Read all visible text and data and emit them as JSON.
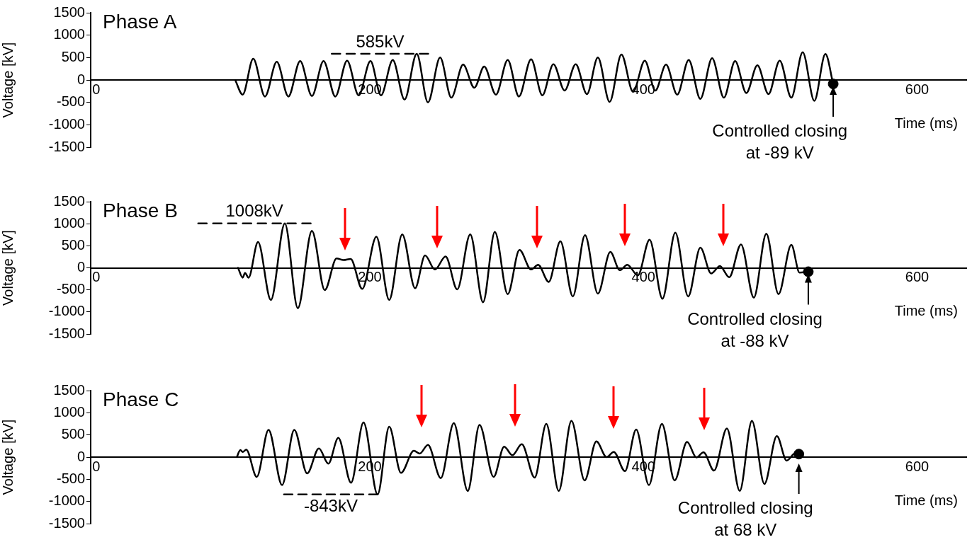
{
  "chart_data": [
    {
      "type": "line",
      "title": "Phase A",
      "xlabel": "Time (ms)",
      "ylabel": "Voltage [kV]",
      "xlim": [
        -4,
        636
      ],
      "ylim": [
        -1500,
        1500
      ],
      "xticks": [
        0,
        200,
        400,
        600
      ],
      "yticks": [
        -1500,
        -1000,
        -500,
        0,
        500,
        1000,
        1500
      ],
      "annotations": [
        {
          "text": "585kV",
          "x": 207.5,
          "y": 585
        },
        {
          "text": "Controlled closing\nat -89 kV",
          "x": 538.7,
          "y": -89
        }
      ],
      "series": [
        {
          "color": "#000000",
          "x": [
            101.6,
            107.1,
            114.8,
            123.4,
            132,
            140.5,
            149.1,
            157.7,
            166.2,
            174.8,
            183.4,
            191.9,
            200.5,
            208.2,
            216.8,
            225.4,
            234.3,
            242.5,
            251.4,
            259.6,
            268.2,
            276.4,
            283.6,
            292.2,
            300.8,
            309,
            317.9,
            326.1,
            334.2,
            342.4,
            350.5,
            358.7,
            366.7,
            375.3,
            383.9,
            392.4,
            401,
            408.7,
            416.5,
            424.7,
            433.1,
            441.6,
            450.2,
            458.8,
            467,
            475.2,
            483.3,
            491.4,
            499.6,
            508.1,
            516.4,
            524.9,
            533,
            538.7
          ],
          "values": [
            0,
            -327,
            474,
            -370,
            405,
            -370,
            421,
            -358,
            421,
            -370,
            432,
            -343,
            421,
            -343,
            447,
            -438,
            585,
            -501,
            500,
            -395,
            342,
            -174,
            300,
            -327,
            447,
            -370,
            463,
            -343,
            352,
            -237,
            352,
            -316,
            500,
            -490,
            569,
            -264,
            432,
            -237,
            342,
            -327,
            447,
            -422,
            484,
            -395,
            421,
            -291,
            326,
            -316,
            432,
            -395,
            620,
            -465,
            579,
            -89
          ]
        },
        {
          "type": "scatter",
          "color": "#000000",
          "x": [
            538.7
          ],
          "values": [
            -89
          ]
        },
        {
          "type": "line",
          "line_style": "dashed",
          "color": "#000000",
          "x": [
            172.2,
            242.7
          ],
          "values": [
            585,
            585
          ]
        }
      ]
    },
    {
      "type": "line",
      "title": "Phase B",
      "xlabel": "Time (ms)",
      "ylabel": "Voltage [kV]",
      "xlim": [
        -4,
        636
      ],
      "ylim": [
        -1500,
        1500
      ],
      "xticks": [
        0,
        200,
        400,
        600
      ],
      "yticks": [
        -1500,
        -1000,
        -500,
        0,
        500,
        1000,
        1500
      ],
      "annotations": [
        {
          "text": "1008kV",
          "x": 115.7,
          "y": 1008
        },
        {
          "text": "Controlled closing\nat -88 kV",
          "x": 520.5,
          "y": -88
        }
      ],
      "series": [
        {
          "color": "#000000",
          "x": [
            103.7,
            107.1,
            108.8,
            111.4,
            118.3,
            127.7,
            137.9,
            147.4,
            157.7,
            167.1,
            175.7,
            180.8,
            186,
            194.5,
            204.8,
            214.2,
            223.7,
            233.1,
            240.4,
            247.6,
            255.4,
            263.9,
            273.4,
            282.8,
            291.4,
            300.8,
            309.4,
            317.9,
            323,
            330.8,
            339.3,
            348.4,
            357.3,
            366.7,
            375.8,
            382.7,
            388.2,
            395.9,
            404.5,
            413.9,
            423.3,
            432.7,
            441.6,
            449.5,
            455.9,
            462.7,
            471.3,
            480.7,
            489.8,
            498.7,
            508.1,
            514.1,
            520.5
          ],
          "values": [
            0,
            -223,
            -118,
            -223,
            584,
            -729,
            1008,
            -915,
            839,
            -506,
            212,
            175,
            201,
            -479,
            707,
            -729,
            760,
            -462,
            281,
            -38,
            255,
            -490,
            760,
            -781,
            813,
            -597,
            404,
            -38,
            69,
            -319,
            600,
            -649,
            743,
            -585,
            360,
            -54,
            69,
            -171,
            638,
            -702,
            798,
            -649,
            456,
            -128,
            41,
            -214,
            531,
            -676,
            775,
            -597,
            520,
            -107,
            -88
          ]
        },
        {
          "type": "scatter",
          "color": "#000000",
          "x": [
            520.5
          ],
          "values": [
            -88
          ]
        },
        {
          "type": "line",
          "line_style": "dashed",
          "color": "#000000",
          "x": [
            74.6,
            156.8
          ],
          "values": [
            1008,
            1008
          ]
        }
      ]
    },
    {
      "type": "line",
      "title": "Phase C",
      "xlabel": "Time (ms)",
      "ylabel": "Voltage [kV]",
      "xlim": [
        -4,
        636
      ],
      "ylim": [
        -1500,
        1500
      ],
      "xticks": [
        0,
        200,
        400,
        600
      ],
      "yticks": [
        -1500,
        -1000,
        -500,
        0,
        500,
        1000,
        1500
      ],
      "annotations": [
        {
          "text": "-843kV",
          "x": 171.5,
          "y": -843
        },
        {
          "text": "Controlled closing\nat 68 kV",
          "x": 513.6,
          "y": 68
        }
      ],
      "series": [
        {
          "color": "#000000",
          "x": [
            102.8,
            105.4,
            107.1,
            109.7,
            117.4,
            126,
            135.9,
            144.8,
            154.2,
            162.8,
            169.7,
            177,
            186.3,
            195.4,
            205.7,
            214.2,
            222.8,
            232.2,
            236.5,
            242.5,
            251.9,
            261.4,
            271.6,
            280.2,
            290.5,
            298.2,
            304.2,
            311.1,
            320.5,
            329,
            338.1,
            347.4,
            357,
            365.6,
            373.1,
            378.3,
            386.5,
            394.7,
            404,
            413.5,
            422.8,
            431.9,
            438.7,
            443.9,
            451.6,
            461,
            470.4,
            479.3,
            488.4,
            497.5,
            504.7,
            510.7,
            513.6
          ],
          "values": [
            0,
            158,
            117,
            169,
            -447,
            616,
            -632,
            616,
            -368,
            196,
            -147,
            433,
            -578,
            781,
            -843,
            686,
            -357,
            142,
            79,
            275,
            -474,
            765,
            -763,
            727,
            -447,
            237,
            43,
            291,
            -463,
            749,
            -763,
            817,
            -526,
            354,
            0,
            117,
            -316,
            623,
            -632,
            749,
            -526,
            343,
            -9,
            106,
            -305,
            648,
            -763,
            817,
            -605,
            474,
            -79,
            79,
            68
          ]
        },
        {
          "type": "scatter",
          "color": "#000000",
          "x": [
            513.6
          ],
          "values": [
            68
          ]
        },
        {
          "type": "line",
          "line_style": "dashed",
          "color": "#000000",
          "x": [
            137.3,
            205.7
          ],
          "values": [
            -843,
            -843
          ]
        }
      ]
    }
  ]
}
